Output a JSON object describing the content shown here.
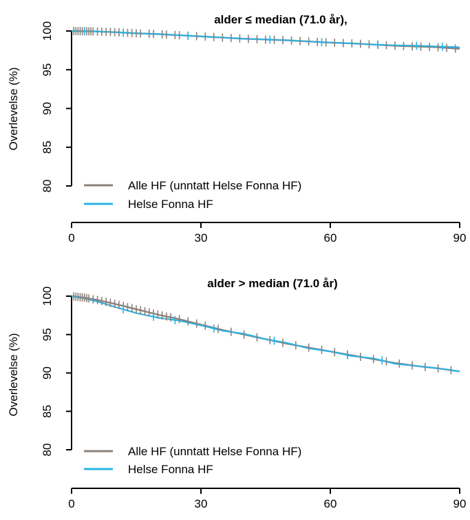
{
  "chart_data": [
    {
      "type": "line",
      "title": "alder ≤ median (71.0 år),",
      "xlabel": "",
      "ylabel": "Overlevelse (%)",
      "xlim": [
        0,
        90
      ],
      "ylim": [
        80,
        100
      ],
      "xticks": [
        "0",
        "30",
        "60",
        "90"
      ],
      "yticks": [
        "80",
        "85",
        "90",
        "95",
        "100"
      ],
      "grid": false,
      "legend_position": "bottom-left",
      "series": [
        {
          "name": "Alle HF (unntatt Helse Fonna HF)",
          "color": "#8c8079",
          "x": [
            0,
            5,
            10,
            15,
            20,
            25,
            30,
            35,
            40,
            45,
            50,
            55,
            60,
            65,
            70,
            75,
            80,
            85,
            90
          ],
          "y": [
            100,
            99.95,
            99.85,
            99.7,
            99.6,
            99.45,
            99.3,
            99.15,
            99.0,
            98.9,
            98.8,
            98.65,
            98.5,
            98.4,
            98.25,
            98.1,
            98.0,
            97.9,
            97.7
          ],
          "censor_x": [
            0.5,
            1,
            1.5,
            2,
            2.5,
            3,
            3.5,
            4,
            4.5,
            5,
            6,
            7,
            8,
            9,
            10,
            11,
            12,
            13,
            14,
            15,
            16,
            18,
            19,
            21,
            22,
            24,
            25,
            27,
            29,
            31,
            33,
            35,
            37,
            39,
            41,
            43,
            45,
            47,
            49,
            51,
            53,
            55,
            57,
            59,
            61,
            63,
            65,
            67,
            69,
            71,
            73,
            75,
            77,
            79,
            81,
            83,
            85,
            87,
            89
          ]
        },
        {
          "name": "Helse Fonna HF",
          "color": "#2bb3e6",
          "x": [
            0,
            5,
            10,
            15,
            20,
            25,
            30,
            35,
            40,
            45,
            50,
            55,
            60,
            65,
            70,
            75,
            80,
            85,
            90
          ],
          "y": [
            100,
            99.95,
            99.85,
            99.7,
            99.6,
            99.45,
            99.3,
            99.15,
            99.0,
            98.9,
            98.8,
            98.65,
            98.5,
            98.4,
            98.25,
            98.15,
            98.1,
            98.0,
            97.9
          ],
          "censor_x": [
            3,
            12,
            27,
            46,
            58,
            71,
            80,
            86
          ]
        }
      ]
    },
    {
      "type": "line",
      "title": "alder > median (71.0 år)",
      "xlabel": "",
      "ylabel": "Overlevelse (%)",
      "xlim": [
        0,
        90
      ],
      "ylim": [
        80,
        100
      ],
      "xticks": [
        "0",
        "30",
        "60",
        "90"
      ],
      "yticks": [
        "80",
        "85",
        "90",
        "95",
        "100"
      ],
      "grid": false,
      "legend_position": "bottom-left",
      "series": [
        {
          "name": "Alle HF (unntatt Helse Fonna HF)",
          "color": "#8c8079",
          "x": [
            0,
            3,
            6,
            10,
            15,
            20,
            25,
            30,
            35,
            40,
            45,
            50,
            55,
            60,
            65,
            70,
            75,
            80,
            85,
            90
          ],
          "y": [
            100,
            99.8,
            99.5,
            99.0,
            98.3,
            97.6,
            97.0,
            96.3,
            95.6,
            95.0,
            94.4,
            93.8,
            93.3,
            92.8,
            92.3,
            91.8,
            91.3,
            90.9,
            90.6,
            90.2
          ],
          "censor_x": [
            0.5,
            1,
            1.5,
            2,
            2.5,
            3,
            3.5,
            4,
            5,
            6,
            7,
            8,
            9,
            10,
            11,
            12,
            13,
            14,
            15,
            16,
            17,
            18,
            19,
            20,
            21,
            22,
            23,
            25,
            27,
            29,
            31,
            34,
            37,
            40,
            43,
            46,
            49,
            52,
            55,
            58,
            61,
            64,
            67,
            70,
            73,
            76,
            79,
            82,
            85,
            88
          ]
        },
        {
          "name": "Helse Fonna HF",
          "color": "#2bb3e6",
          "x": [
            0,
            3,
            6,
            10,
            15,
            20,
            25,
            30,
            35,
            40,
            45,
            50,
            55,
            60,
            65,
            70,
            75,
            80,
            85,
            90
          ],
          "y": [
            100,
            99.7,
            99.3,
            98.6,
            97.8,
            97.2,
            96.8,
            96.2,
            95.5,
            95.1,
            94.4,
            93.9,
            93.2,
            92.8,
            92.2,
            91.9,
            91.2,
            90.9,
            90.6,
            90.2
          ],
          "censor_x": [
            12,
            19,
            24,
            33,
            47,
            64,
            72
          ]
        }
      ]
    }
  ]
}
